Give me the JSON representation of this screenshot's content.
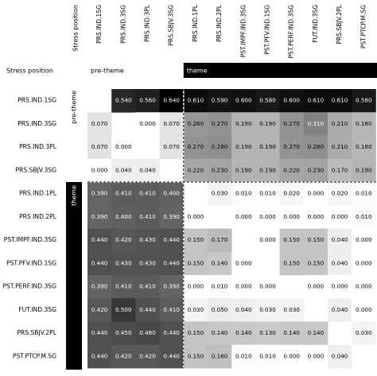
{
  "chart_data": {
    "type": "heatmap",
    "title": "",
    "xlabel": "",
    "ylabel": "",
    "corner_column_label": "Stress position",
    "stress_row_label": "Stress position",
    "stress_groups": [
      "pre-theme",
      "theme"
    ],
    "columns": [
      "PRS.IND.1SG",
      "PRS.IND.3SG",
      "PRS.IND.3PL",
      "PRS.SBJV.3SG",
      "PRS.IND.1PL",
      "PRS.IND.2PL",
      "PST.IMPF.IND.3SG",
      "PST.PFV.IND.1SG",
      "PST.PERF.IND.3SG",
      "FUT.IND.3SG",
      "PRS.SBJV.2PL",
      "PST.PTCP.M.SG"
    ],
    "rows": [
      "PRS.IND.1SG",
      "PRS.IND.3SG",
      "PRS.IND.3PL",
      "PRS.SBJV.3SG",
      "PRS.IND.1PL",
      "PRS.IND.2PL",
      "PST.IMPF.IND.3SG",
      "PST.PFV.IND.1SG",
      "PST.PERF.IND.3SG",
      "FUT.IND.3SG",
      "PRS.SBJV.2PL",
      "PST.PTCP.M.SG"
    ],
    "column_groups": [
      "pre-theme",
      "pre-theme",
      "pre-theme",
      "pre-theme",
      "theme",
      "theme",
      "theme",
      "theme",
      "theme",
      "theme",
      "theme",
      "theme"
    ],
    "row_groups": [
      "pre-theme",
      "pre-theme",
      "pre-theme",
      "pre-theme",
      "theme",
      "theme",
      "theme",
      "theme",
      "theme",
      "theme",
      "theme",
      "theme"
    ],
    "values": [
      [
        null,
        0.54,
        0.56,
        0.64,
        0.61,
        0.59,
        0.6,
        0.58,
        0.6,
        0.61,
        0.61,
        0.58
      ],
      [
        0.07,
        null,
        0.0,
        0.07,
        0.26,
        0.27,
        0.19,
        0.19,
        0.27,
        0.31,
        0.21,
        0.18
      ],
      [
        0.07,
        0.0,
        null,
        0.07,
        0.27,
        0.28,
        0.19,
        0.19,
        0.27,
        0.28,
        0.21,
        0.18
      ],
      [
        0.0,
        0.04,
        0.04,
        null,
        0.22,
        0.23,
        0.19,
        0.19,
        0.22,
        0.23,
        0.17,
        0.19
      ],
      [
        0.39,
        0.41,
        0.41,
        0.4,
        null,
        0.03,
        0.01,
        0.01,
        0.02,
        0.0,
        0.02,
        0.01
      ],
      [
        0.39,
        0.4,
        0.41,
        0.39,
        0.0,
        null,
        0.0,
        0.0,
        0.0,
        0.0,
        0.0,
        0.01
      ],
      [
        0.44,
        0.42,
        0.43,
        0.44,
        0.15,
        0.17,
        null,
        0.0,
        0.15,
        0.15,
        0.04,
        0.0
      ],
      [
        0.44,
        0.43,
        0.43,
        0.44,
        0.15,
        0.14,
        0.0,
        null,
        0.15,
        0.15,
        0.04,
        0.0
      ],
      [
        0.39,
        0.41,
        0.41,
        0.39,
        0.0,
        0.01,
        0.0,
        0.0,
        null,
        0.0,
        0.0,
        0.0
      ],
      [
        0.42,
        0.5,
        0.44,
        0.41,
        0.03,
        0.05,
        0.04,
        0.03,
        0.03,
        null,
        0.04,
        0.0
      ],
      [
        0.44,
        0.45,
        0.46,
        0.44,
        0.15,
        0.14,
        0.14,
        0.13,
        0.14,
        0.14,
        null,
        0.03
      ],
      [
        0.44,
        0.42,
        0.42,
        0.44,
        0.15,
        0.16,
        0.01,
        0.01,
        0.0,
        0.0,
        0.04,
        null
      ]
    ],
    "value_range": [
      0,
      0.64
    ],
    "colormap": "greys",
    "separator": "dashed"
  }
}
